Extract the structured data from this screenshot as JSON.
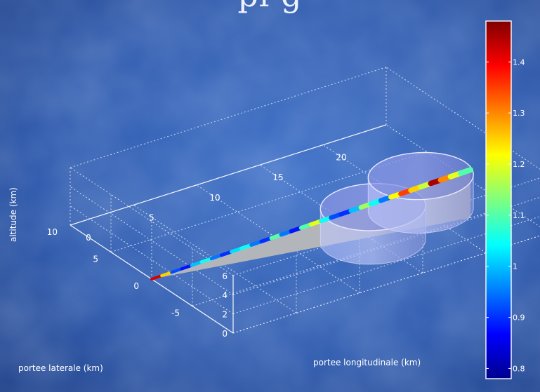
{
  "chart_data": {
    "type": "3d-line-surface",
    "title_fragment": "pl                                                g",
    "xlabel": "portee longitudinale (km)",
    "ylabel": "portee laterale (km)",
    "zlabel": "altitude (km)",
    "x_ticks": [
      "0",
      "5",
      "10",
      "15",
      "20"
    ],
    "y_ticks": [
      "-5",
      "0",
      "5",
      "10"
    ],
    "z_ticks": [
      "0",
      "2",
      "4",
      "6"
    ],
    "xlim": [
      0,
      25
    ],
    "ylim": [
      -10,
      10
    ],
    "zlim": [
      0,
      6
    ],
    "grid": true,
    "colorbar": {
      "ticks": [
        "0.8",
        "0.9",
        "1",
        "1.1",
        "1.2",
        "1.3",
        "1.4"
      ],
      "range": [
        0.78,
        1.48
      ],
      "colormap": "jet"
    },
    "trajectory": {
      "start": {
        "x": 0,
        "y": 0,
        "z": 0
      },
      "end": {
        "x": 22,
        "y": -5,
        "z": 5
      },
      "color_values": [
        1.42,
        1.25,
        0.92,
        0.88,
        1.0,
        1.05,
        0.95,
        0.9,
        1.02,
        1.05,
        0.95,
        0.9,
        1.1,
        0.95,
        0.88,
        1.1,
        1.2,
        1.05,
        0.92,
        0.9,
        1.0,
        1.15,
        1.05,
        0.95,
        1.22,
        1.35,
        1.25,
        1.18,
        1.45,
        1.3,
        1.2,
        1.1
      ]
    },
    "cylinders": [
      {
        "x": 13,
        "y": -7,
        "z_bottom": 2.5,
        "z_top": 6,
        "radius": 3.5
      },
      {
        "x": 20,
        "y": -2,
        "z_bottom": 0,
        "z_top": 3.5,
        "radius": 3.5
      }
    ],
    "colors": {
      "cylinder_fill": "#a8b4f0",
      "trajectory_shadow": "#b8b8b8",
      "background": "#2a55a8"
    }
  }
}
